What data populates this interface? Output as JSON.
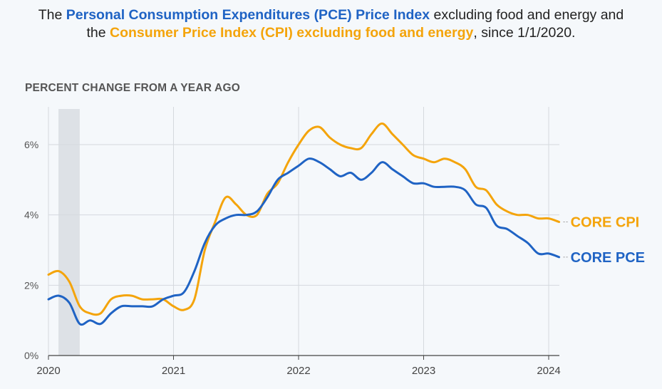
{
  "title": {
    "part1": "The ",
    "pce_name": "Personal Consumption Expenditures (PCE) Price Index",
    "part2": " excluding food and energy and the ",
    "cpi_name": "Consumer Price Index (CPI) excluding food and energy",
    "part3": ", since 1/1/2020."
  },
  "subtitle": "PERCENT CHANGE FROM A YEAR AGO",
  "colors": {
    "core_cpi": "#f4a40b",
    "core_pce": "#1f63c4",
    "recession": "#dde1e6",
    "grid": "#d5d9de"
  },
  "chart_data": {
    "type": "line",
    "xlim": [
      2020.0,
      2024.1
    ],
    "ylim": [
      0,
      7
    ],
    "x_ticks": [
      2020,
      2021,
      2022,
      2023,
      2024
    ],
    "x_tick_labels": [
      "2020",
      "2021",
      "2022",
      "2023",
      "2024"
    ],
    "y_ticks": [
      0,
      2,
      4,
      6
    ],
    "y_tick_labels": [
      "0%",
      "2%",
      "4%",
      "6%"
    ],
    "grid": true,
    "shaded_period": [
      2020.08,
      2020.25
    ],
    "series": [
      {
        "name": "CORE CPI",
        "x": [
          2020.0,
          2020.083,
          2020.167,
          2020.25,
          2020.333,
          2020.417,
          2020.5,
          2020.583,
          2020.667,
          2020.75,
          2020.833,
          2020.917,
          2021.0,
          2021.083,
          2021.167,
          2021.25,
          2021.333,
          2021.417,
          2021.5,
          2021.583,
          2021.667,
          2021.75,
          2021.833,
          2021.917,
          2022.0,
          2022.083,
          2022.167,
          2022.25,
          2022.333,
          2022.417,
          2022.5,
          2022.583,
          2022.667,
          2022.75,
          2022.833,
          2022.917,
          2023.0,
          2023.083,
          2023.167,
          2023.25,
          2023.333,
          2023.417,
          2023.5,
          2023.583,
          2023.667,
          2023.75,
          2023.833,
          2023.917,
          2024.0,
          2024.083
        ],
        "values": [
          2.3,
          2.4,
          2.1,
          1.4,
          1.2,
          1.2,
          1.6,
          1.7,
          1.7,
          1.6,
          1.6,
          1.6,
          1.4,
          1.3,
          1.6,
          3.0,
          3.8,
          4.5,
          4.3,
          4.0,
          4.0,
          4.6,
          4.9,
          5.5,
          6.0,
          6.4,
          6.5,
          6.2,
          6.0,
          5.9,
          5.9,
          6.3,
          6.6,
          6.3,
          6.0,
          5.7,
          5.6,
          5.5,
          5.6,
          5.5,
          5.3,
          4.8,
          4.7,
          4.3,
          4.1,
          4.0,
          4.0,
          3.9,
          3.9,
          3.8
        ],
        "label": "CORE CPI"
      },
      {
        "name": "CORE PCE",
        "x": [
          2020.0,
          2020.083,
          2020.167,
          2020.25,
          2020.333,
          2020.417,
          2020.5,
          2020.583,
          2020.667,
          2020.75,
          2020.833,
          2020.917,
          2021.0,
          2021.083,
          2021.167,
          2021.25,
          2021.333,
          2021.417,
          2021.5,
          2021.583,
          2021.667,
          2021.75,
          2021.833,
          2021.917,
          2022.0,
          2022.083,
          2022.167,
          2022.25,
          2022.333,
          2022.417,
          2022.5,
          2022.583,
          2022.667,
          2022.75,
          2022.833,
          2022.917,
          2023.0,
          2023.083,
          2023.167,
          2023.25,
          2023.333,
          2023.417,
          2023.5,
          2023.583,
          2023.667,
          2023.75,
          2023.833,
          2023.917,
          2024.0,
          2024.083
        ],
        "values": [
          1.6,
          1.7,
          1.5,
          0.9,
          1.0,
          0.9,
          1.2,
          1.4,
          1.4,
          1.4,
          1.4,
          1.6,
          1.7,
          1.8,
          2.4,
          3.2,
          3.7,
          3.9,
          4.0,
          4.0,
          4.1,
          4.5,
          5.0,
          5.2,
          5.4,
          5.6,
          5.5,
          5.3,
          5.1,
          5.2,
          5.0,
          5.2,
          5.5,
          5.3,
          5.1,
          4.9,
          4.9,
          4.8,
          4.8,
          4.8,
          4.7,
          4.3,
          4.2,
          3.7,
          3.6,
          3.4,
          3.2,
          2.9,
          2.9,
          2.8
        ],
        "label": "CORE PCE"
      }
    ]
  }
}
